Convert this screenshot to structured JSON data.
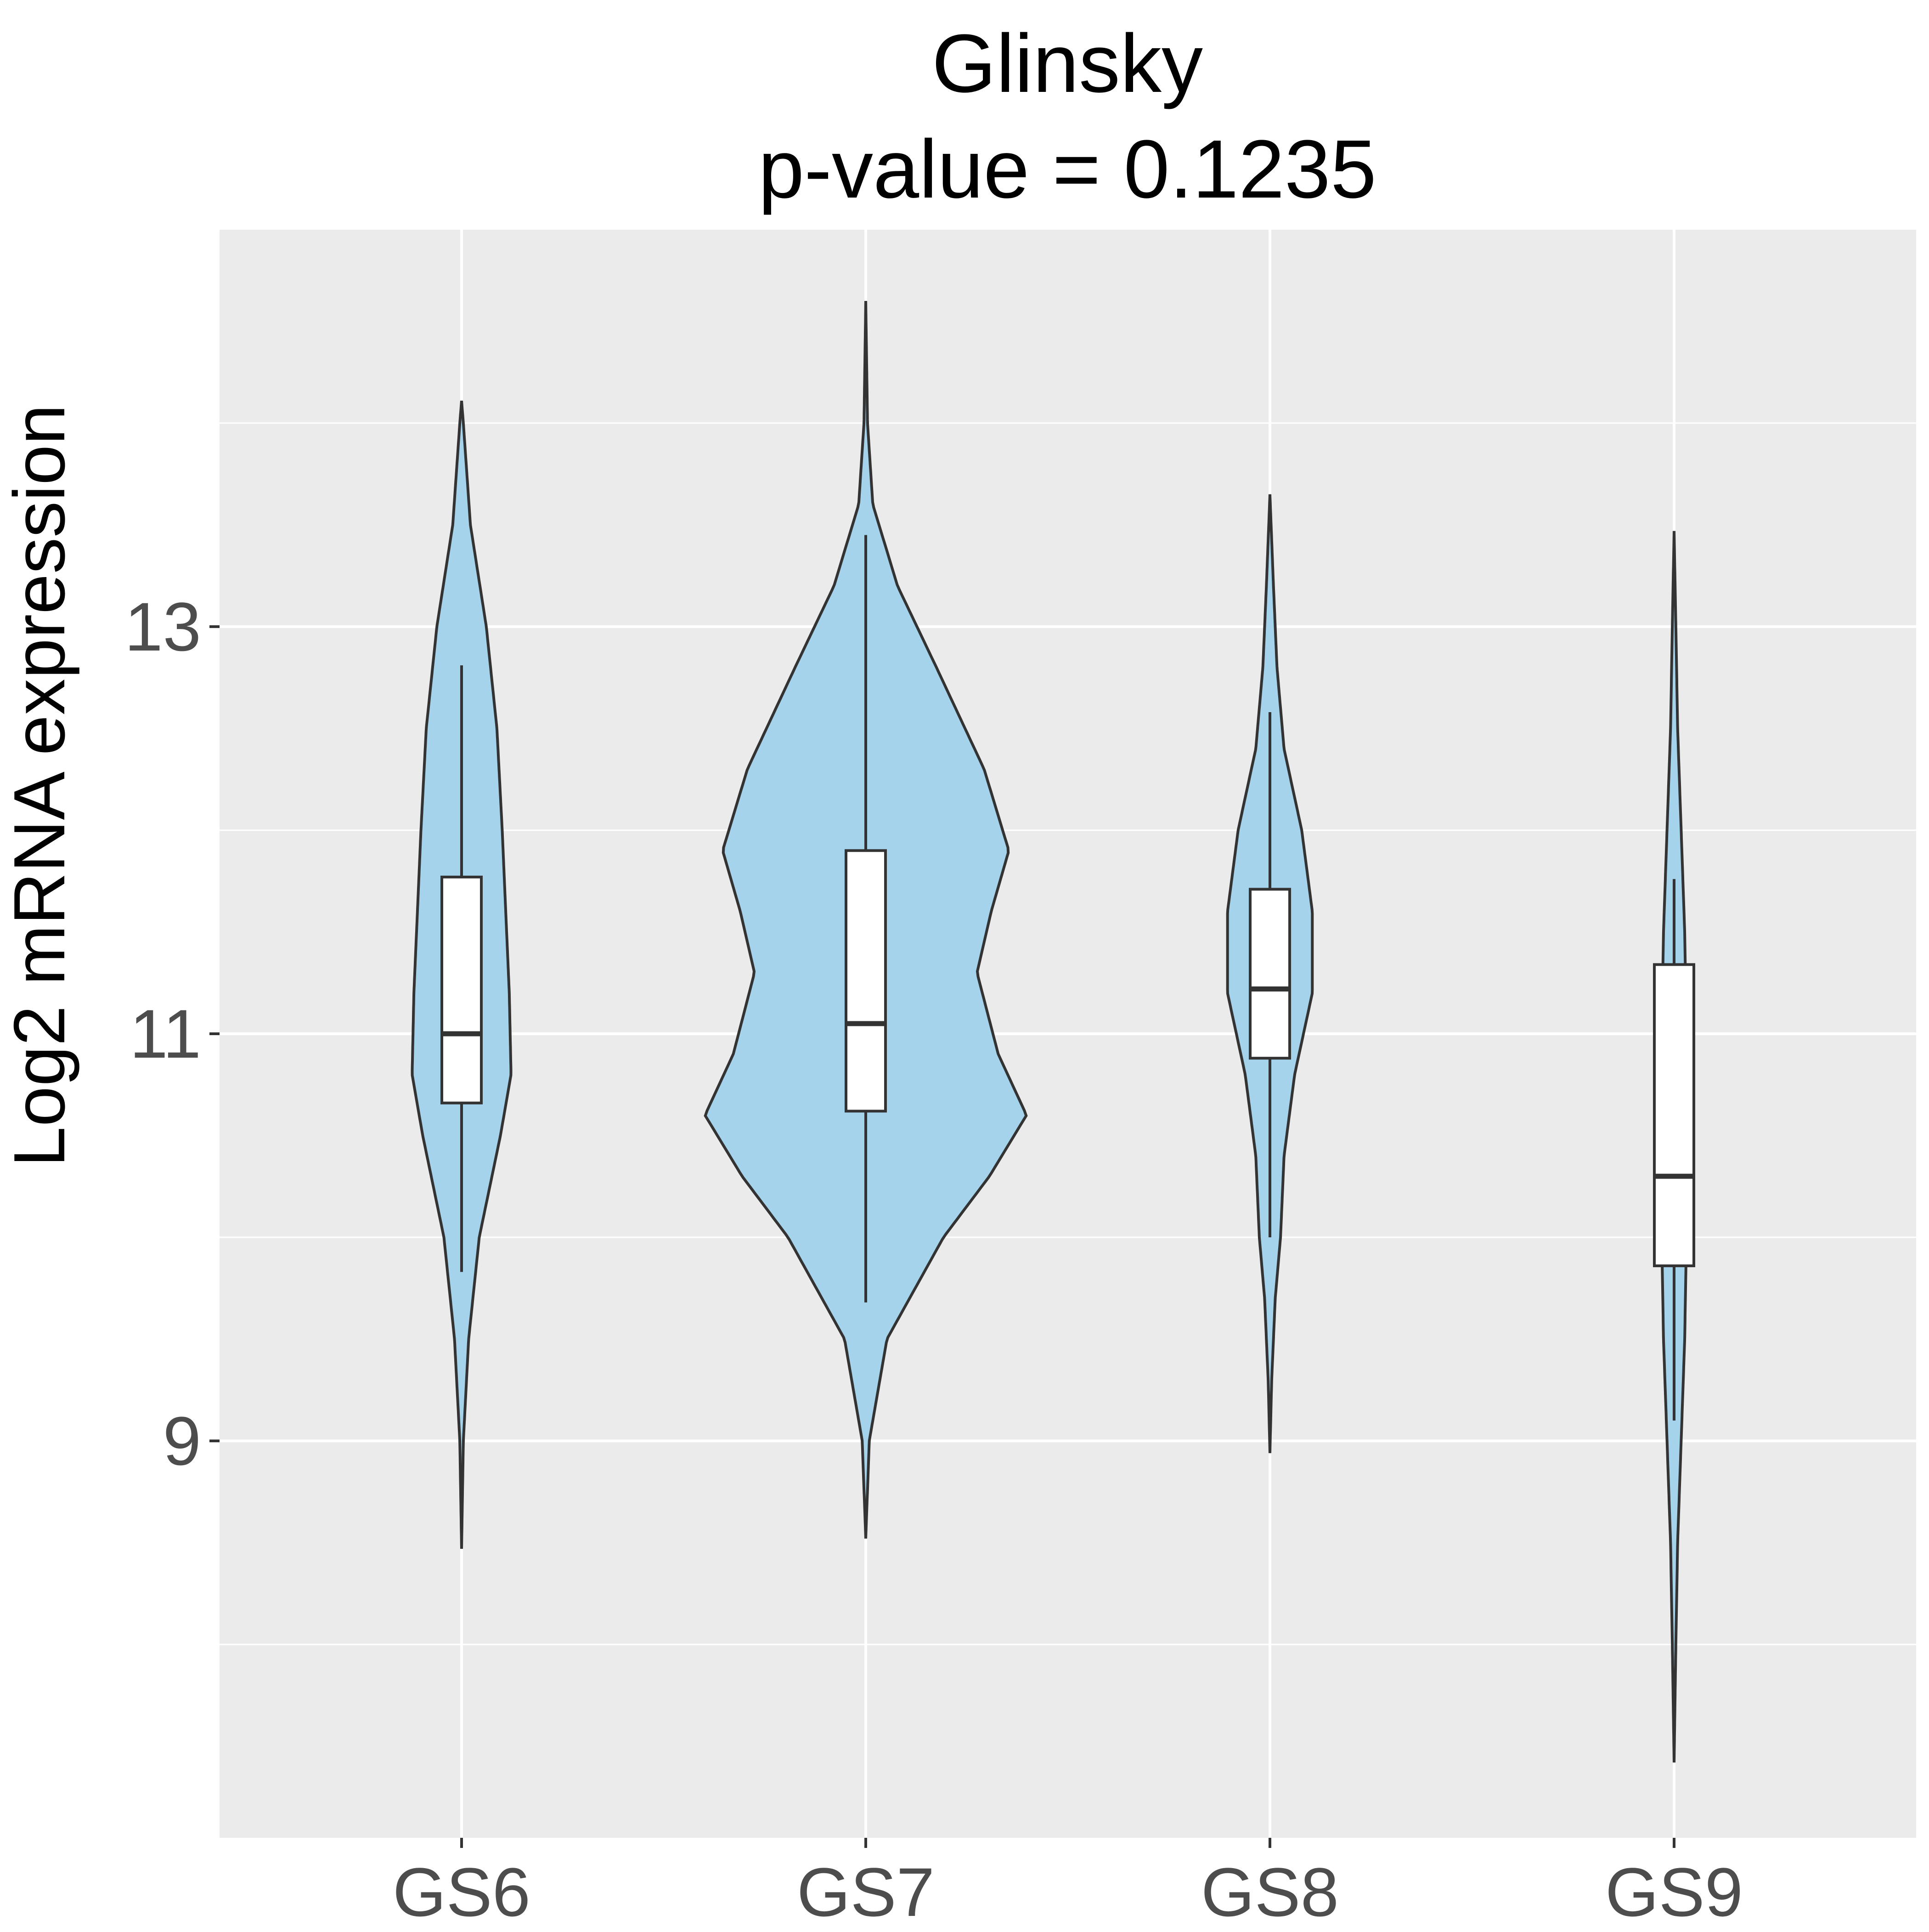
{
  "chart_data": {
    "type": "violin",
    "title": "Glinsky",
    "subtitle": "p-value = 0.1235",
    "xlabel": "",
    "ylabel": "Log2 mRNA expression",
    "categories": [
      "GS6",
      "GS7",
      "GS8",
      "GS9"
    ],
    "yticks": [
      "9",
      "11",
      "13"
    ],
    "ylim": [
      7.05,
      14.95
    ],
    "grid": true,
    "colors": {
      "panel_bg": "#ebebeb",
      "grid": "#ffffff",
      "violin_fill": "#a6d3ec",
      "outline": "#333333",
      "box_fill": "#ffffff"
    },
    "series": [
      {
        "category": "GS6",
        "min": 8.47,
        "max": 14.11,
        "box": {
          "q1": 10.66,
          "median": 11.0,
          "q3": 11.77,
          "whisker_low": 9.83,
          "whisker_high": 12.81
        },
        "density": [
          [
            8.47,
            0.0
          ],
          [
            9.0,
            0.01
          ],
          [
            9.5,
            0.04
          ],
          [
            10.0,
            0.1
          ],
          [
            10.5,
            0.22
          ],
          [
            10.8,
            0.28
          ],
          [
            11.2,
            0.27
          ],
          [
            11.6,
            0.25
          ],
          [
            12.0,
            0.23
          ],
          [
            12.5,
            0.2
          ],
          [
            13.0,
            0.14
          ],
          [
            13.5,
            0.05
          ],
          [
            14.0,
            0.01
          ],
          [
            14.11,
            0.0
          ]
        ]
      },
      {
        "category": "GS7",
        "min": 8.52,
        "max": 14.6,
        "box": {
          "q1": 10.62,
          "median": 11.05,
          "q3": 11.9,
          "whisker_low": 9.68,
          "whisker_high": 13.45
        },
        "density": [
          [
            8.52,
            0.0
          ],
          [
            9.0,
            0.02
          ],
          [
            9.5,
            0.12
          ],
          [
            10.0,
            0.44
          ],
          [
            10.3,
            0.7
          ],
          [
            10.6,
            0.91
          ],
          [
            10.9,
            0.75
          ],
          [
            11.3,
            0.63
          ],
          [
            11.6,
            0.71
          ],
          [
            11.9,
            0.81
          ],
          [
            12.3,
            0.67
          ],
          [
            12.8,
            0.4
          ],
          [
            13.2,
            0.18
          ],
          [
            13.6,
            0.04
          ],
          [
            14.0,
            0.01
          ],
          [
            14.6,
            0.0
          ]
        ]
      },
      {
        "category": "GS8",
        "min": 8.94,
        "max": 13.65,
        "box": {
          "q1": 10.88,
          "median": 11.22,
          "q3": 11.71,
          "whisker_low": 10.0,
          "whisker_high": 12.58
        },
        "density": [
          [
            8.94,
            0.0
          ],
          [
            9.3,
            0.01
          ],
          [
            9.7,
            0.03
          ],
          [
            10.0,
            0.06
          ],
          [
            10.4,
            0.08
          ],
          [
            10.8,
            0.14
          ],
          [
            11.2,
            0.24
          ],
          [
            11.6,
            0.24
          ],
          [
            12.0,
            0.18
          ],
          [
            12.4,
            0.08
          ],
          [
            12.8,
            0.04
          ],
          [
            13.2,
            0.02
          ],
          [
            13.65,
            0.0
          ]
        ]
      },
      {
        "category": "GS9",
        "min": 7.42,
        "max": 13.47,
        "box": {
          "q1": 9.86,
          "median": 10.3,
          "q3": 11.34,
          "whisker_low": 9.1,
          "whisker_high": 11.76
        },
        "density": [
          [
            7.42,
            0.0
          ],
          [
            8.0,
            0.01
          ],
          [
            8.5,
            0.02
          ],
          [
            9.0,
            0.04
          ],
          [
            9.5,
            0.06
          ],
          [
            10.0,
            0.07
          ],
          [
            10.5,
            0.07
          ],
          [
            11.0,
            0.07
          ],
          [
            11.5,
            0.06
          ],
          [
            12.0,
            0.04
          ],
          [
            12.5,
            0.02
          ],
          [
            13.0,
            0.01
          ],
          [
            13.47,
            0.0
          ]
        ]
      }
    ]
  }
}
